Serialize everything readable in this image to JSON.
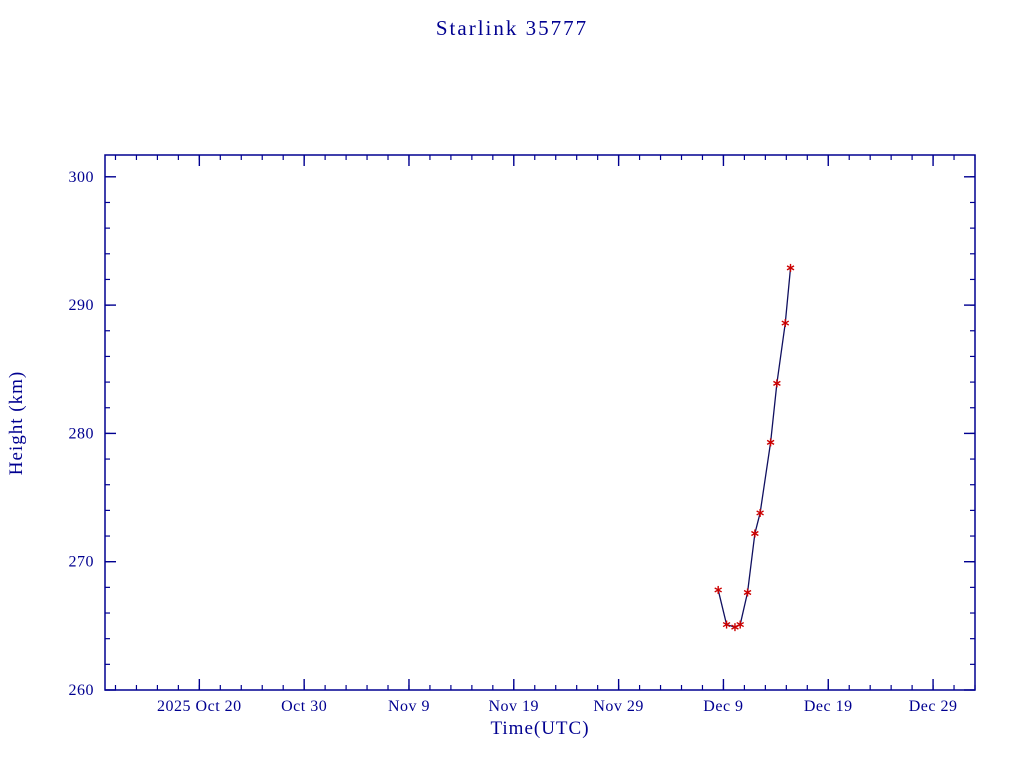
{
  "chart_data": {
    "type": "line",
    "title": "Starlink 35777",
    "xlabel": "Time(UTC)",
    "ylabel": "Height (km)",
    "legend": "none",
    "grid": false,
    "x_unit": "days since 2025-10-11 (left edge of axis)",
    "xlim": [
      0,
      83
    ],
    "ylim": [
      260,
      301.7
    ],
    "x_ticks": [
      {
        "label": "2025 Oct 20",
        "t": 9
      },
      {
        "label": "Oct 30",
        "t": 19
      },
      {
        "label": "Nov 9",
        "t": 29
      },
      {
        "label": "Nov 19",
        "t": 39
      },
      {
        "label": "Nov 29",
        "t": 49
      },
      {
        "label": "Dec 9",
        "t": 59
      },
      {
        "label": "Dec 19",
        "t": 69
      },
      {
        "label": "Dec 29",
        "t": 79
      }
    ],
    "x_minor_start": 1,
    "x_minor_step": 2,
    "y_ticks": [
      260,
      270,
      280,
      290,
      300
    ],
    "y_minor_step": 2,
    "axis_color": "#000090",
    "text_color": "#000090",
    "line_color": "#101060",
    "marker": "asterisk",
    "marker_color": "#cc0000",
    "points": [
      {
        "date": "2025-12-08",
        "t": 58.5,
        "height_km": 267.8
      },
      {
        "date": "2025-12-09",
        "t": 59.3,
        "height_km": 265.1
      },
      {
        "date": "2025-12-10",
        "t": 60.1,
        "height_km": 264.9
      },
      {
        "date": "2025-12-10",
        "t": 60.6,
        "height_km": 265.1
      },
      {
        "date": "2025-12-11",
        "t": 61.3,
        "height_km": 267.6
      },
      {
        "date": "2025-12-12",
        "t": 62.0,
        "height_km": 272.2
      },
      {
        "date": "2025-12-12",
        "t": 62.5,
        "height_km": 273.8
      },
      {
        "date": "2025-12-13",
        "t": 63.5,
        "height_km": 279.3
      },
      {
        "date": "2025-12-14",
        "t": 64.1,
        "height_km": 283.9
      },
      {
        "date": "2025-12-15",
        "t": 64.9,
        "height_km": 288.6
      },
      {
        "date": "2025-12-15",
        "t": 65.4,
        "height_km": 292.9
      }
    ]
  }
}
